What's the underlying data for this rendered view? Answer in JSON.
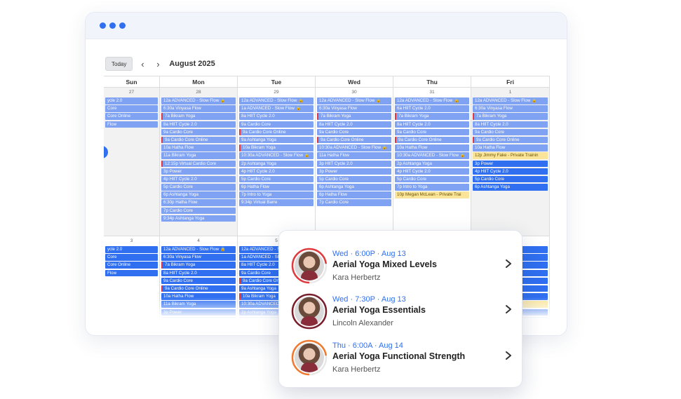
{
  "toolbar": {
    "today_label": "Today",
    "prev_icon": "chevron-left-icon",
    "next_icon": "chevron-right-icon",
    "month_label": "August 2025"
  },
  "days": [
    "Sun",
    "Mon",
    "Tue",
    "Wed",
    "Thu",
    "Fri"
  ],
  "weeks": [
    {
      "days": [
        {
          "num": "27",
          "gray": true,
          "events": [
            {
              "t": "ycle 2.0",
              "c": "light"
            },
            {
              "t": "Core",
              "c": "light"
            },
            {
              "t": "Core Online",
              "c": "light"
            },
            {
              "t": "Flow",
              "c": "light"
            }
          ]
        },
        {
          "num": "28",
          "gray": true,
          "events": [
            {
              "t": "12a ADVANCED - Slow Flow 🔒",
              "c": "light"
            },
            {
              "t": "6:30a Vinyasa Flow",
              "c": "light"
            },
            {
              "t": "7a Bikram Yoga",
              "c": "light",
              "r": 1
            },
            {
              "t": "8a HIIT Cycle 2.0",
              "c": "light"
            },
            {
              "t": "9a Cardio Core",
              "c": "light"
            },
            {
              "t": "9a Cardio Core Online",
              "c": "light",
              "r": 1
            },
            {
              "t": "10a Hatha Flow",
              "c": "light"
            },
            {
              "t": "11a Bikram Yoga",
              "c": "light"
            },
            {
              "t": "12:15p Virtual Cardio Core",
              "c": "light",
              "r": 1
            },
            {
              "t": "3p Power",
              "c": "light"
            },
            {
              "t": "4p HIIT Cycle 2.0",
              "c": "light"
            },
            {
              "t": "5p Cardio Core",
              "c": "light"
            },
            {
              "t": "6p Ashtanga Yoga",
              "c": "light"
            },
            {
              "t": "6:30p Hatha Flow",
              "c": "light"
            },
            {
              "t": "7p Cardio Core",
              "c": "light"
            },
            {
              "t": "9:34p Ashtanga Yoga",
              "c": "light"
            }
          ]
        },
        {
          "num": "29",
          "gray": false,
          "events": [
            {
              "t": "12a ADVANCED - Slow Flow 🔒",
              "c": "light"
            },
            {
              "t": "1a ADVANCED - Slow Flow 🔒",
              "c": "light"
            },
            {
              "t": "8a HIIT Cycle 2.0",
              "c": "light"
            },
            {
              "t": "9a Cardio Core",
              "c": "light"
            },
            {
              "t": "9a Cardio Core Online",
              "c": "light",
              "r": 1
            },
            {
              "t": "9a Ashtanga Yoga",
              "c": "light"
            },
            {
              "t": "10a Bikram Yoga",
              "c": "light",
              "r": 1
            },
            {
              "t": "10:30a ADVANCED - Slow Flow 🔒",
              "c": "light"
            },
            {
              "t": "2p Ashtanga Yoga",
              "c": "light"
            },
            {
              "t": "4p HIIT Cycle 2.0",
              "c": "light"
            },
            {
              "t": "5p Cardio Core",
              "c": "light"
            },
            {
              "t": "6p Hatha Flow",
              "c": "light"
            },
            {
              "t": "7p Intro to Yoga",
              "c": "light"
            },
            {
              "t": "9:34p Virtual Barre",
              "c": "light"
            }
          ]
        },
        {
          "num": "30",
          "gray": false,
          "events": [
            {
              "t": "12a ADVANCED - Slow Flow 🔒",
              "c": "light"
            },
            {
              "t": "6:30a Vinyasa Flow",
              "c": "light"
            },
            {
              "t": "7a Bikram Yoga",
              "c": "light",
              "r": 1
            },
            {
              "t": "8a HIIT Cycle 2.0",
              "c": "light"
            },
            {
              "t": "9a Cardio Core",
              "c": "light"
            },
            {
              "t": "9a Cardio Core Online",
              "c": "light",
              "r": 1
            },
            {
              "t": "10:30a ADVANCED - Slow Flow 🔒",
              "c": "light"
            },
            {
              "t": "11a Hatha Flow",
              "c": "light"
            },
            {
              "t": "3p HIIT Cycle 2.0",
              "c": "light"
            },
            {
              "t": "3p Power",
              "c": "light"
            },
            {
              "t": "5p Cardio Core",
              "c": "light"
            },
            {
              "t": "6p Ashtanga Yoga",
              "c": "light"
            },
            {
              "t": "6p Hatha Flow",
              "c": "light"
            },
            {
              "t": "7p Cardio Core",
              "c": "light"
            }
          ]
        },
        {
          "num": "31",
          "gray": false,
          "events": [
            {
              "t": "12a ADVANCED - Slow Flow 🔒",
              "c": "light"
            },
            {
              "t": "6a HIIT Cycle 2.0",
              "c": "light"
            },
            {
              "t": "7a Bikram Yoga",
              "c": "light",
              "r": 1
            },
            {
              "t": "8a HIIT Cycle 2.0",
              "c": "light"
            },
            {
              "t": "9a Cardio Core",
              "c": "light"
            },
            {
              "t": "9a Cardio Core Online",
              "c": "light",
              "r": 1
            },
            {
              "t": "10a Hatha Flow",
              "c": "light"
            },
            {
              "t": "10:30a ADVANCED - Slow Flow 🔒",
              "c": "light"
            },
            {
              "t": "2p Ashtanga Yoga",
              "c": "light"
            },
            {
              "t": "4p HIIT Cycle 2.0",
              "c": "light"
            },
            {
              "t": "5p Cardio Core",
              "c": "light"
            },
            {
              "t": "7p Intro to Yoga",
              "c": "light"
            },
            {
              "t": "10p Megan McLean - Private Trai",
              "c": "yellow"
            }
          ]
        },
        {
          "num": "1",
          "gray": true,
          "events": [
            {
              "t": "12a ADVANCED - Slow Flow 🔒",
              "c": "light"
            },
            {
              "t": "6:30a Vinyasa Flow",
              "c": "light"
            },
            {
              "t": "7a Bikram Yoga",
              "c": "light",
              "r": 1
            },
            {
              "t": "8a HIIT Cycle 2.0",
              "c": "light"
            },
            {
              "t": "9a Cardio Core",
              "c": "light"
            },
            {
              "t": "9a Cardio Core Online",
              "c": "light",
              "r": 1
            },
            {
              "t": "10a Hatha Flow",
              "c": "light"
            },
            {
              "t": "12p Jimmy Fake - Private Trainin",
              "c": "yellow"
            },
            {
              "t": "3p Power",
              "c": "dark"
            },
            {
              "t": "4p HIIT Cycle 2.0",
              "c": "dark"
            },
            {
              "t": "5p Cardio Core",
              "c": "dark"
            },
            {
              "t": "6p Ashtanga Yoga",
              "c": "dark"
            }
          ]
        }
      ]
    },
    {
      "days": [
        {
          "num": "3",
          "gray": false,
          "events": [
            {
              "t": "ycle 2.0",
              "c": "dark"
            },
            {
              "t": "Core",
              "c": "dark"
            },
            {
              "t": "Core Online",
              "c": "dark"
            },
            {
              "t": "Flow",
              "c": "dark"
            }
          ]
        },
        {
          "num": "4",
          "gray": false,
          "events": [
            {
              "t": "12a ADVANCED - Slow Flow 🔒",
              "c": "dark"
            },
            {
              "t": "6:30a Vinyasa Flow",
              "c": "dark"
            },
            {
              "t": "7a Bikram Yoga",
              "c": "dark",
              "r": 1
            },
            {
              "t": "8a HIIT Cycle 2.0",
              "c": "dark"
            },
            {
              "t": "9a Cardio Core",
              "c": "dark"
            },
            {
              "t": "9a Cardio Core Online",
              "c": "dark",
              "r": 1
            },
            {
              "t": "10a Hatha Flow",
              "c": "dark"
            },
            {
              "t": "11a Bikram Yoga",
              "c": "dark"
            },
            {
              "t": "3p Power",
              "c": "dark"
            },
            {
              "t": "4p HIIT Cycle 2.0",
              "c": "dark"
            },
            {
              "t": "5p Cardio Core",
              "c": "dark"
            }
          ]
        },
        {
          "num": "5",
          "gray": false,
          "events": [
            {
              "t": "12a ADVANCED - Slow Flow 🔒",
              "c": "dark"
            },
            {
              "t": "1a ADVANCED - Slow",
              "c": "dark"
            },
            {
              "t": "8a HIIT Cycle 2.0",
              "c": "dark"
            },
            {
              "t": "9a Cardio Core",
              "c": "dark"
            },
            {
              "t": "9a Cardio Core Onli",
              "c": "dark",
              "r": 1
            },
            {
              "t": "9a Ashtanga Yoga",
              "c": "dark"
            },
            {
              "t": "10a Bikram Yoga",
              "c": "dark",
              "r": 1
            },
            {
              "t": "10:30a ADVANCED -",
              "c": "dark"
            },
            {
              "t": "2p Ashtanga Yoga",
              "c": "dark"
            },
            {
              "t": "4p HIIT Cycle 2.0",
              "c": "dark"
            },
            {
              "t": "5p Cardio Core",
              "c": "dark"
            }
          ]
        },
        {
          "num": "6",
          "gray": false,
          "events": []
        },
        {
          "num": "7",
          "gray": false,
          "events": []
        },
        {
          "num": "8",
          "gray": false,
          "events": [
            {
              "t": "Flow 🔒",
              "c": "dark"
            },
            {
              "t": "",
              "c": "dark"
            },
            {
              "t": "",
              "c": "dark"
            },
            {
              "t": "",
              "c": "dark"
            },
            {
              "t": "",
              "c": "dark"
            },
            {
              "t": "",
              "c": "dark"
            },
            {
              "t": "",
              "c": "dark"
            },
            {
              "t": "vate Trainin",
              "c": "yellow"
            },
            {
              "t": "",
              "c": "dark"
            },
            {
              "t": "",
              "c": "dark"
            }
          ]
        }
      ]
    }
  ],
  "popup": {
    "items": [
      {
        "when": "Wed · 6:00P · Aug 13",
        "cls": "Aerial Yoga Mixed Levels",
        "inst": "Kara Herbertz",
        "ring": "#e0393e",
        "full": false
      },
      {
        "when": "Wed · 7:30P · Aug 13",
        "cls": "Aerial Yoga Essentials",
        "inst": "Lincoln Alexander",
        "ring": "#7a1e2c",
        "full": true
      },
      {
        "when": "Thu · 6:00A · Aug 14",
        "cls": "Aerial Yoga Functional Strength",
        "inst": "Kara Herbertz",
        "ring": "#f07a2f",
        "full": false
      }
    ]
  }
}
